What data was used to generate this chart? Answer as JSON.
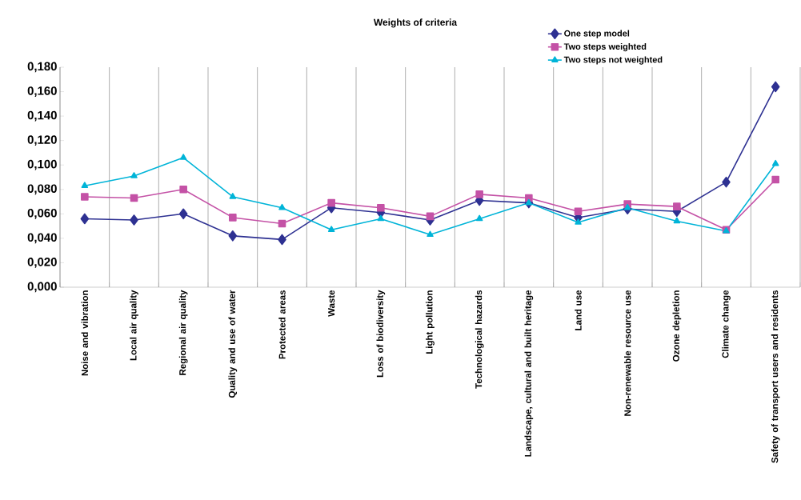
{
  "chart_data": {
    "type": "line",
    "title": "Weights of criteria",
    "categories": [
      "Noise and vibration",
      "Local air quality",
      "Regional air quality",
      "Quality and use of water",
      "Protected areas",
      "Waste",
      "Loss of biodiversity",
      "Light pollution",
      "Technological hazards",
      "Landscape, cultural and built heritage",
      "Land use",
      "Non-renewable resource use",
      "Ozone depletion",
      "Climate change",
      "Safety of transport users and residents"
    ],
    "series": [
      {
        "name": "One step model",
        "color": "#2e3192",
        "marker": "diamond",
        "values": [
          0.056,
          0.055,
          0.06,
          0.042,
          0.039,
          0.065,
          0.061,
          0.055,
          0.071,
          0.069,
          0.057,
          0.064,
          0.062,
          0.086,
          0.164
        ]
      },
      {
        "name": "Two steps weighted",
        "color": "#c452a6",
        "marker": "square",
        "values": [
          0.074,
          0.073,
          0.08,
          0.057,
          0.052,
          0.069,
          0.065,
          0.058,
          0.076,
          0.073,
          0.062,
          0.068,
          0.066,
          0.047,
          0.088
        ]
      },
      {
        "name": "Two steps not weighted",
        "color": "#00b4d8",
        "marker": "triangle",
        "values": [
          0.083,
          0.091,
          0.106,
          0.074,
          0.065,
          0.047,
          0.056,
          0.043,
          0.056,
          0.069,
          0.053,
          0.065,
          0.054,
          0.046,
          0.101
        ]
      }
    ],
    "ylim": [
      0,
      0.18
    ],
    "yticks": [
      {
        "value": 0,
        "label": "0,000"
      },
      {
        "value": 0.02,
        "label": "0,020"
      },
      {
        "value": 0.04,
        "label": "0,040"
      },
      {
        "value": 0.06,
        "label": "0,060"
      },
      {
        "value": 0.08,
        "label": "0,080"
      },
      {
        "value": 0.1,
        "label": "0,100"
      },
      {
        "value": 0.12,
        "label": "0,120"
      },
      {
        "value": 0.14,
        "label": "0,140"
      },
      {
        "value": 0.16,
        "label": "0,160"
      },
      {
        "value": 0.18,
        "label": "0,180"
      }
    ],
    "grid": "x",
    "legend": "top right",
    "line_style": "solid"
  }
}
